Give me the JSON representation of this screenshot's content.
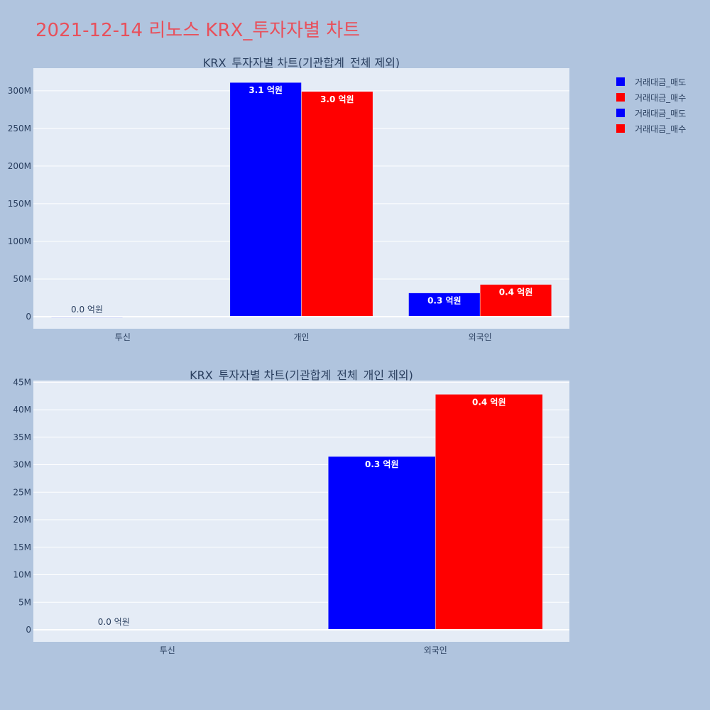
{
  "page_title": "2021-12-14 리노스 KRX_투자자별 차트",
  "legend": [
    {
      "name": "거래대금_매도",
      "color": "#0000ff"
    },
    {
      "name": "거래대금_매수",
      "color": "#ff0000"
    },
    {
      "name": "거래대금_매도",
      "color": "#0000ff"
    },
    {
      "name": "거래대금_매수",
      "color": "#ff0000"
    }
  ],
  "chart_data": [
    {
      "type": "bar",
      "title": "KRX_투자자별 차트(기관합계_전체 제외)",
      "categories": [
        "투신",
        "개인",
        "외국인"
      ],
      "series": [
        {
          "name": "거래대금_매도",
          "color": "#0000ff",
          "values": [
            120000,
            311000000,
            31500000
          ],
          "labels": [
            "0.0 억원",
            "3.1 억원",
            "0.3 억원"
          ]
        },
        {
          "name": "거래대금_매수",
          "color": "#ff0000",
          "values": [
            0,
            299000000,
            42800000
          ],
          "labels": [
            "",
            "3.0 억원",
            "0.4 억원"
          ]
        }
      ],
      "ylim": [
        0,
        330000000
      ],
      "yticks": [
        0,
        50000000,
        100000000,
        150000000,
        200000000,
        250000000,
        300000000
      ],
      "ytick_labels": [
        "0",
        "50M",
        "100M",
        "150M",
        "200M",
        "250M",
        "300M"
      ],
      "grid": true
    },
    {
      "type": "bar",
      "title": "KRX_투자자별 차트(기관합계_전체_개인 제외)",
      "categories": [
        "투신",
        "외국인"
      ],
      "series": [
        {
          "name": "거래대금_매도",
          "color": "#0000ff",
          "values": [
            120000,
            31500000
          ],
          "labels": [
            "0.0 억원",
            "0.3 억원"
          ]
        },
        {
          "name": "거래대금_매수",
          "color": "#ff0000",
          "values": [
            0,
            42800000
          ],
          "labels": [
            "",
            "0.4 억원"
          ]
        }
      ],
      "ylim": [
        0,
        45300000
      ],
      "yticks": [
        0,
        5000000,
        10000000,
        15000000,
        20000000,
        25000000,
        30000000,
        35000000,
        40000000,
        45000000
      ],
      "ytick_labels": [
        "0",
        "5M",
        "10M",
        "15M",
        "20M",
        "25M",
        "30M",
        "35M",
        "40M",
        "45M"
      ],
      "grid": true
    }
  ]
}
